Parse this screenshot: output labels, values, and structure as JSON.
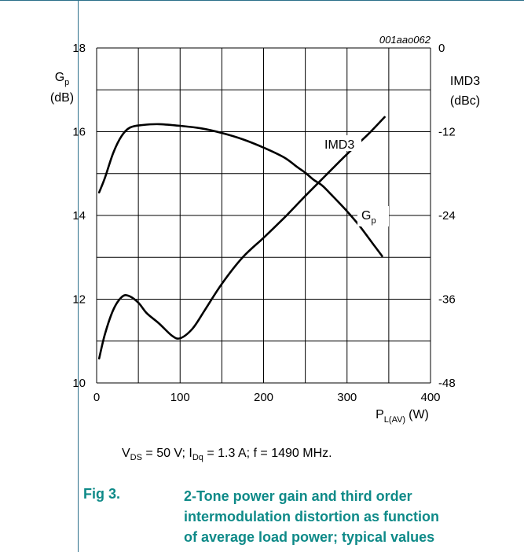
{
  "chart_data": {
    "type": "line",
    "figure_code": "001aao062",
    "x": {
      "label": "P",
      "label_sub": "L(AV)",
      "unit": "(W)",
      "range": [
        0,
        400
      ],
      "ticks": [
        0,
        100,
        200,
        300,
        400
      ]
    },
    "y_left": {
      "label": "G",
      "label_sub": "p",
      "unit": "(dB)",
      "range": [
        10,
        18
      ],
      "ticks": [
        10,
        12,
        14,
        16,
        18
      ]
    },
    "y_right": {
      "label": "IMD3",
      "unit": "(dBc)",
      "range": [
        -48,
        0
      ],
      "ticks": [
        0,
        -12,
        -24,
        -36,
        -48
      ]
    },
    "grid": true,
    "series": [
      {
        "name": "G",
        "name_sub": "p",
        "axis": "left",
        "points": [
          [
            3,
            14.55
          ],
          [
            10,
            14.9
          ],
          [
            20,
            15.5
          ],
          [
            30,
            15.9
          ],
          [
            40,
            16.1
          ],
          [
            55,
            16.16
          ],
          [
            75,
            16.18
          ],
          [
            100,
            16.14
          ],
          [
            125,
            16.08
          ],
          [
            150,
            15.97
          ],
          [
            175,
            15.82
          ],
          [
            200,
            15.62
          ],
          [
            225,
            15.38
          ],
          [
            240,
            15.16
          ],
          [
            250,
            15.02
          ],
          [
            260,
            14.85
          ],
          [
            270,
            14.72
          ],
          [
            280,
            14.52
          ],
          [
            300,
            14.1
          ],
          [
            315,
            13.75
          ],
          [
            330,
            13.35
          ],
          [
            342,
            13.03
          ]
        ]
      },
      {
        "name": "IMD3",
        "axis": "right",
        "points": [
          [
            3,
            -44.5
          ],
          [
            10,
            -41
          ],
          [
            20,
            -37.5
          ],
          [
            30,
            -35.7
          ],
          [
            38,
            -35.5
          ],
          [
            50,
            -36.5
          ],
          [
            60,
            -38
          ],
          [
            75,
            -39.5
          ],
          [
            90,
            -41.2
          ],
          [
            100,
            -41.6
          ],
          [
            115,
            -40.2
          ],
          [
            130,
            -37.5
          ],
          [
            150,
            -33.8
          ],
          [
            175,
            -30
          ],
          [
            200,
            -27.2
          ],
          [
            225,
            -24.3
          ],
          [
            250,
            -21.2
          ],
          [
            275,
            -18.2
          ],
          [
            300,
            -15.2
          ],
          [
            325,
            -12.4
          ],
          [
            345,
            -9.9
          ]
        ]
      }
    ]
  },
  "caption": {
    "v_var": "V",
    "v_sub": "DS",
    "v_val": " = 50 V; ",
    "i_var": "I",
    "i_sub": "Dq",
    "i_val": " = 1.3 A; f = 1490 MHz."
  },
  "figure": {
    "number": "Fig 3.",
    "title": "2-Tone power gain and third order intermodulation distortion as function of average load power; typical values"
  },
  "colors": {
    "caption_title": "#0e8a88",
    "frame_rule": "#2b6f8a",
    "curve": "#000000",
    "grid": "#000000"
  }
}
